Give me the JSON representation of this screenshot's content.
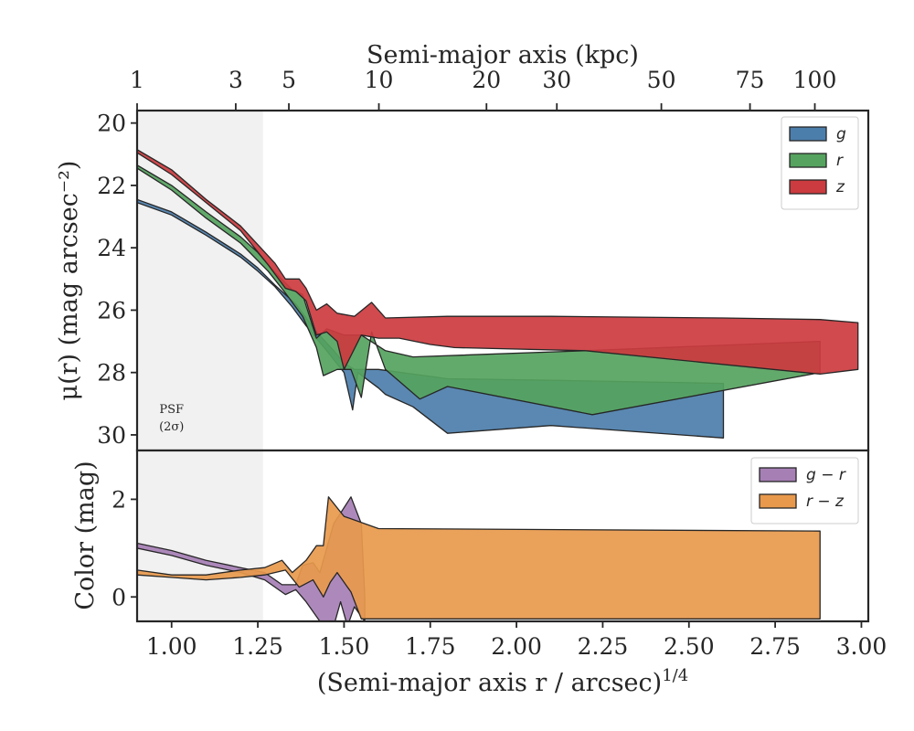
{
  "chart_data": [
    {
      "type": "area",
      "panel": "surface-brightness",
      "top_xlabel": "Semi-major axis (kpc)",
      "top_xticks": [
        "1",
        "3",
        "5",
        "10",
        "20",
        "30",
        "50",
        "75",
        "100"
      ],
      "top_xtick_positions": [
        0.9,
        1.186,
        1.34,
        1.601,
        1.913,
        2.117,
        2.42,
        2.677,
        2.865
      ],
      "ylabel": "μ(r) (mag arcsec⁻²)",
      "ylim": [
        30.5,
        19.6
      ],
      "yticks": [
        20,
        22,
        24,
        26,
        28,
        30
      ],
      "xlim": [
        0.9,
        3.02
      ],
      "psf_region": {
        "x_end": 1.265,
        "label_line1": "PSF",
        "label_line2": "(2σ)"
      },
      "legend_position": "top-right",
      "series": [
        {
          "name": "g",
          "color": "#4c7eab",
          "upper": [
            [
              0.9,
              22.45
            ],
            [
              1.0,
              22.85
            ],
            [
              1.1,
              23.5
            ],
            [
              1.2,
              24.2
            ],
            [
              1.25,
              24.65
            ],
            [
              1.3,
              25.2
            ],
            [
              1.36,
              25.8
            ],
            [
              1.42,
              26.7
            ],
            [
              1.47,
              27.3
            ],
            [
              1.5,
              27.7
            ],
            [
              1.53,
              27.9
            ],
            [
              1.6,
              27.9
            ],
            [
              1.8,
              28.2
            ],
            [
              2.1,
              28.25
            ],
            [
              2.6,
              28.35
            ]
          ],
          "lower": [
            [
              2.6,
              30.1
            ],
            [
              2.1,
              29.7
            ],
            [
              1.8,
              29.95
            ],
            [
              1.7,
              29.1
            ],
            [
              1.62,
              28.7
            ],
            [
              1.6,
              28.5
            ],
            [
              1.54,
              28.0
            ],
            [
              1.525,
              29.2
            ],
            [
              1.5,
              28.0
            ],
            [
              1.45,
              27.3
            ],
            [
              1.39,
              26.5
            ],
            [
              1.35,
              25.9
            ],
            [
              1.3,
              25.25
            ],
            [
              1.25,
              24.75
            ],
            [
              1.2,
              24.3
            ],
            [
              1.1,
              23.6
            ],
            [
              1.0,
              22.95
            ],
            [
              0.9,
              22.55
            ]
          ]
        },
        {
          "name": "r",
          "color": "#55a35e",
          "upper": [
            [
              0.9,
              21.35
            ],
            [
              1.0,
              22.0
            ],
            [
              1.1,
              22.85
            ],
            [
              1.2,
              23.65
            ],
            [
              1.25,
              24.15
            ],
            [
              1.3,
              24.8
            ],
            [
              1.35,
              25.35
            ],
            [
              1.38,
              25.5
            ],
            [
              1.42,
              26.9
            ],
            [
              1.45,
              26.6
            ],
            [
              1.5,
              26.8
            ],
            [
              1.55,
              26.8
            ],
            [
              1.62,
              27.3
            ],
            [
              1.7,
              27.5
            ],
            [
              2.2,
              27.3
            ],
            [
              2.88,
              27.0
            ]
          ],
          "lower": [
            [
              2.88,
              28.0
            ],
            [
              2.22,
              29.35
            ],
            [
              1.8,
              28.45
            ],
            [
              1.72,
              28.85
            ],
            [
              1.62,
              27.9
            ],
            [
              1.58,
              26.7
            ],
            [
              1.55,
              28.8
            ],
            [
              1.52,
              27.9
            ],
            [
              1.48,
              27.9
            ],
            [
              1.44,
              28.1
            ],
            [
              1.42,
              27.2
            ],
            [
              1.38,
              26.2
            ],
            [
              1.33,
              25.45
            ],
            [
              1.28,
              24.75
            ],
            [
              1.2,
              23.85
            ],
            [
              1.1,
              23.05
            ],
            [
              1.0,
              22.15
            ],
            [
              0.9,
              21.45
            ]
          ]
        },
        {
          "name": "z",
          "color": "#cc3b3f",
          "upper": [
            [
              0.9,
              20.85
            ],
            [
              1.0,
              21.5
            ],
            [
              1.1,
              22.45
            ],
            [
              1.2,
              23.3
            ],
            [
              1.25,
              23.9
            ],
            [
              1.3,
              24.5
            ],
            [
              1.33,
              25.0
            ],
            [
              1.37,
              25.0
            ],
            [
              1.39,
              25.3
            ],
            [
              1.42,
              26.0
            ],
            [
              1.45,
              25.8
            ],
            [
              1.48,
              26.1
            ],
            [
              1.53,
              26.2
            ],
            [
              1.58,
              25.75
            ],
            [
              1.62,
              26.25
            ],
            [
              1.8,
              26.2
            ],
            [
              2.1,
              26.2
            ],
            [
              2.6,
              26.25
            ],
            [
              2.88,
              26.3
            ],
            [
              2.99,
              26.4
            ]
          ],
          "lower": [
            [
              2.99,
              27.9
            ],
            [
              2.88,
              28.05
            ],
            [
              2.2,
              27.3
            ],
            [
              1.82,
              27.2
            ],
            [
              1.75,
              27.1
            ],
            [
              1.66,
              26.9
            ],
            [
              1.6,
              26.9
            ],
            [
              1.55,
              26.8
            ],
            [
              1.5,
              27.9
            ],
            [
              1.48,
              27.0
            ],
            [
              1.45,
              26.7
            ],
            [
              1.42,
              26.8
            ],
            [
              1.39,
              25.7
            ],
            [
              1.36,
              25.4
            ],
            [
              1.33,
              25.3
            ],
            [
              1.28,
              24.55
            ],
            [
              1.2,
              23.45
            ],
            [
              1.1,
              22.55
            ],
            [
              1.0,
              21.65
            ],
            [
              0.9,
              20.95
            ]
          ]
        }
      ]
    },
    {
      "type": "area",
      "panel": "color",
      "xlabel": "(Semi-major axis r / arcsec)^1/4",
      "xlabel_base": "(Semi-major axis r / arcsec)",
      "xlabel_exp": "1/4",
      "ylabel": "Color (mag)",
      "ylim": [
        -0.5,
        3.0
      ],
      "yticks": [
        0,
        2
      ],
      "xlim": [
        0.9,
        3.02
      ],
      "xticks": [
        "1.00",
        "1.25",
        "1.50",
        "1.75",
        "2.00",
        "2.25",
        "2.50",
        "2.75",
        "3.00"
      ],
      "legend_position": "top-right",
      "series": [
        {
          "name": "g − r",
          "color": "#a67fb5",
          "upper": [
            [
              0.9,
              1.1
            ],
            [
              1.0,
              0.95
            ],
            [
              1.1,
              0.75
            ],
            [
              1.2,
              0.6
            ],
            [
              1.27,
              0.5
            ],
            [
              1.32,
              0.25
            ],
            [
              1.36,
              0.25
            ],
            [
              1.38,
              0.65
            ],
            [
              1.41,
              0.7
            ],
            [
              1.43,
              0.5
            ],
            [
              1.47,
              1.5
            ],
            [
              1.52,
              2.05
            ],
            [
              1.55,
              1.5
            ],
            [
              1.56,
              0.0
            ]
          ],
          "lower": [
            [
              1.56,
              -0.5
            ],
            [
              1.53,
              -0.2
            ],
            [
              1.51,
              -0.6
            ],
            [
              1.49,
              -0.1
            ],
            [
              1.47,
              -0.6
            ],
            [
              1.43,
              -0.5
            ],
            [
              1.39,
              -0.1
            ],
            [
              1.36,
              0.15
            ],
            [
              1.33,
              0.05
            ],
            [
              1.27,
              0.35
            ],
            [
              1.2,
              0.5
            ],
            [
              1.1,
              0.65
            ],
            [
              1.0,
              0.85
            ],
            [
              0.9,
              1.0
            ]
          ]
        },
        {
          "name": "r − z",
          "color": "#e8994c",
          "upper": [
            [
              0.9,
              0.55
            ],
            [
              1.0,
              0.45
            ],
            [
              1.1,
              0.45
            ],
            [
              1.2,
              0.55
            ],
            [
              1.27,
              0.6
            ],
            [
              1.32,
              0.75
            ],
            [
              1.35,
              0.5
            ],
            [
              1.39,
              0.75
            ],
            [
              1.42,
              1.05
            ],
            [
              1.44,
              1.05
            ],
            [
              1.455,
              2.05
            ],
            [
              1.5,
              1.65
            ],
            [
              1.6,
              1.4
            ],
            [
              2.88,
              1.35
            ]
          ],
          "lower": [
            [
              2.88,
              -0.45
            ],
            [
              1.55,
              -0.45
            ],
            [
              1.52,
              0.1
            ],
            [
              1.48,
              0.5
            ],
            [
              1.46,
              0.3
            ],
            [
              1.44,
              0.0
            ],
            [
              1.41,
              0.35
            ],
            [
              1.37,
              0.2
            ],
            [
              1.33,
              0.55
            ],
            [
              1.27,
              0.45
            ],
            [
              1.2,
              0.4
            ],
            [
              1.1,
              0.35
            ],
            [
              1.0,
              0.4
            ],
            [
              0.9,
              0.45
            ]
          ]
        }
      ]
    }
  ]
}
